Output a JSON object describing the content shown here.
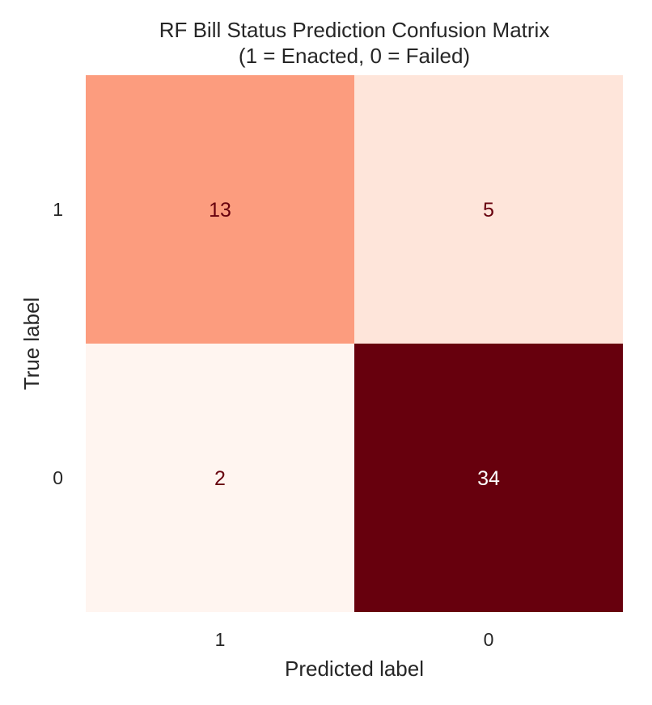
{
  "chart_data": {
    "type": "heatmap",
    "title": "RF Bill Status Prediction Confusion Matrix",
    "subtitle": "(1 = Enacted, 0 = Failed)",
    "xlabel": "Predicted label",
    "ylabel": "True label",
    "x_categories": [
      "1",
      "0"
    ],
    "y_categories": [
      "1",
      "0"
    ],
    "values": [
      [
        13,
        5
      ],
      [
        2,
        34
      ]
    ],
    "colormap": "Reds",
    "vmin": 2,
    "vmax": 34,
    "grid": false,
    "colorbar": false,
    "colors": {
      "low": "#fff4ef",
      "high": "#67000d",
      "text_dark": "#67000d",
      "text_light": "#ffffff"
    }
  }
}
